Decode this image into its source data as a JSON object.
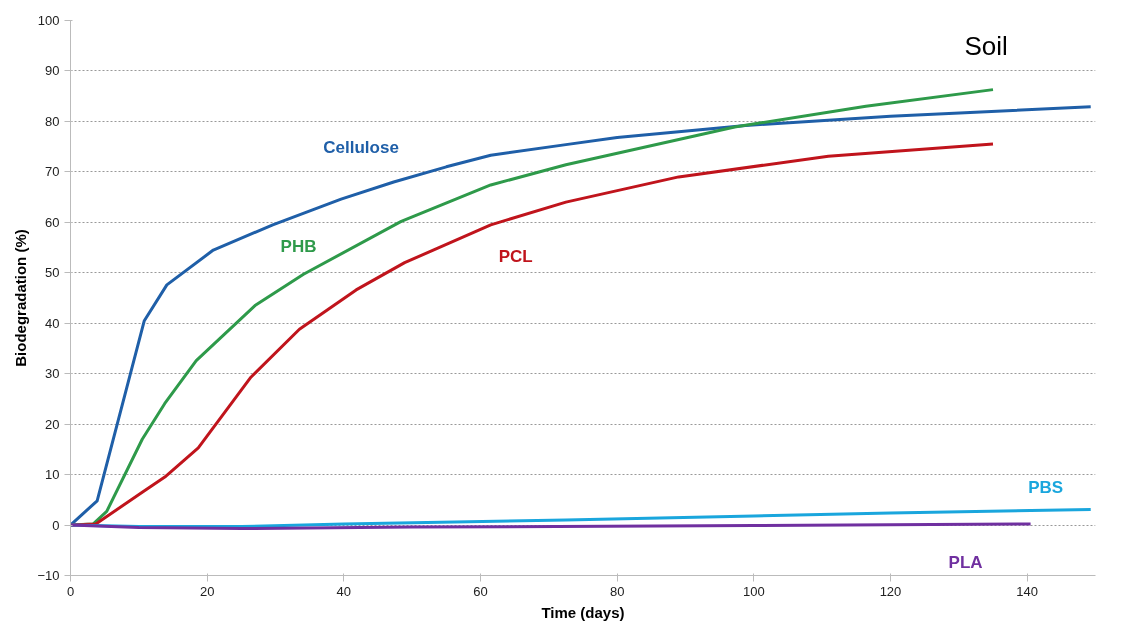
{
  "chart_data": {
    "type": "line",
    "title": "Soil",
    "xlabel": "Time (days)",
    "ylabel": "Biodegradation (%)",
    "xlim": [
      0,
      150
    ],
    "xticks": [
      0,
      20,
      40,
      60,
      80,
      100,
      120,
      140
    ],
    "ylim": [
      -10,
      100
    ],
    "yticks": [
      -10,
      0,
      10,
      20,
      30,
      40,
      50,
      60,
      70,
      80,
      90,
      100
    ],
    "grid": "y",
    "legend": false,
    "marker": "none",
    "line_style": "solid",
    "series": [
      {
        "name": "Cellulose",
        "color": "#1f5fa8",
        "x": [
          0,
          3.9,
          10.8,
          14.1,
          20.9,
          29.6,
          39.6,
          47.3,
          55,
          61.5,
          72.5,
          80,
          98.8,
          120,
          149.3
        ],
        "values": [
          0,
          4.8,
          40.5,
          47.6,
          54.5,
          59.5,
          64.6,
          68,
          71,
          73.3,
          75.4,
          76.8,
          79.2,
          81,
          82.9
        ]
      },
      {
        "name": "PHB",
        "color": "#2e9a4a",
        "x": [
          0,
          3.3,
          5.3,
          10.5,
          13.8,
          18.4,
          27,
          34.1,
          48.4,
          61.5,
          72.5,
          97.2,
          116.4,
          135
        ],
        "values": [
          0,
          0.2,
          2.7,
          17,
          24.1,
          32.6,
          43.5,
          49.7,
          60.2,
          67.4,
          71.4,
          78.9,
          83,
          86.3
        ]
      },
      {
        "name": "PCL",
        "color": "#c0141c",
        "x": [
          0,
          3.7,
          10.5,
          13.8,
          18.7,
          26.4,
          33.5,
          41.8,
          48.9,
          61.5,
          72.5,
          89,
          110.9,
          135
        ],
        "values": [
          0,
          0.2,
          6.5,
          9.5,
          15.3,
          29.3,
          38.8,
          46.6,
          52,
          59.5,
          64,
          69,
          73.1,
          75.5
        ]
      },
      {
        "name": "PBS",
        "color": "#1aa6dd",
        "x": [
          0,
          10,
          25,
          40,
          72.5,
          100,
          120,
          149.3
        ],
        "values": [
          0,
          -0.3,
          -0.3,
          0.2,
          1.0,
          1.8,
          2.4,
          3.1
        ]
      },
      {
        "name": "PLA",
        "color": "#7030a0",
        "x": [
          0,
          10,
          25,
          50,
          100,
          140.5
        ],
        "values": [
          0,
          -0.5,
          -0.7,
          -0.4,
          -0.1,
          0.2
        ]
      }
    ]
  }
}
